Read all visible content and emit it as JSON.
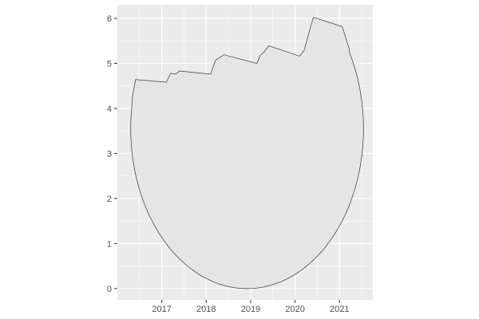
{
  "chart_data": {
    "type": "area",
    "title": "",
    "xlabel": "",
    "ylabel": "",
    "xlim": [
      2016.0,
      2021.75
    ],
    "ylim": [
      -0.25,
      6.3
    ],
    "grid": true,
    "legend": "none",
    "x_ticks": [
      {
        "value": 2017,
        "label": "2017"
      },
      {
        "value": 2018,
        "label": "2018"
      },
      {
        "value": 2019,
        "label": "2019"
      },
      {
        "value": 2020,
        "label": "2020"
      },
      {
        "value": 2021,
        "label": "2021"
      }
    ],
    "y_ticks": [
      {
        "value": 0,
        "label": "0"
      },
      {
        "value": 1,
        "label": "1"
      },
      {
        "value": 2,
        "label": "2"
      },
      {
        "value": 3,
        "label": "3"
      },
      {
        "value": 4,
        "label": "4"
      },
      {
        "value": 5,
        "label": "5"
      },
      {
        "value": 6,
        "label": "6"
      }
    ],
    "top_series": {
      "x": [
        2016.33,
        2016.41,
        2017.1,
        2017.2,
        2017.31,
        2017.4,
        2018.1,
        2018.21,
        2018.4,
        2019.14,
        2019.22,
        2019.29,
        2019.41,
        2020.1,
        2020.2,
        2020.41,
        2021.06,
        2021.21
      ],
      "y": [
        4.2,
        4.64,
        4.58,
        4.78,
        4.76,
        4.83,
        4.76,
        5.07,
        5.19,
        5.0,
        5.18,
        5.24,
        5.39,
        5.16,
        5.28,
        6.02,
        5.82,
        5.35
      ]
    },
    "bottom_curve": {
      "center_x": 18.92,
      "x_radius": 2.62,
      "center_y": 3.55,
      "y_radius": 3.55
    },
    "colors": {
      "panel": "#ebebeb",
      "grid_major": "#ffffff",
      "fill": "#e5e5e5",
      "outline": "#333333"
    }
  }
}
